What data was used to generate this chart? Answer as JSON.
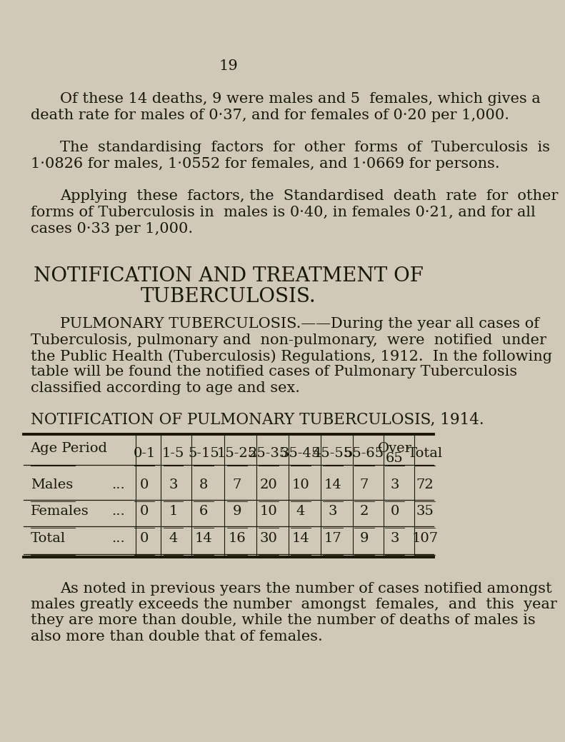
{
  "bg_color": "#cfc9b8",
  "page_number": "19",
  "paragraph1_line1": "Of these 14 deaths, 9 were males and 5  females, which gives a",
  "paragraph1_line2": "death rate for males of 0·37, and for females of 0·20 per 1,000.",
  "paragraph2_line1": "The  standardising  factors  for  other  forms  of  Tuberculosis  is",
  "paragraph2_line2": "1·0826 for males, 1·0552 for females, and 1·0669 for persons.",
  "paragraph3_line1": "Applying  these  factors, the  Standardised  death  rate  for  other",
  "paragraph3_line2": "forms of Tuberculosis in  males is 0·40, in females 0·21, and for all",
  "paragraph3_line3": "cases 0·33 per 1,000.",
  "section_title1": "NOTIFICATION AND TREATMENT OF",
  "section_title2": "TUBERCULOSIS.",
  "pulmonary_para_line1": "PULMONARY TUBERCULOSIS.——During the year all cases of",
  "pulmonary_para_line2": "Tuberculosis, pulmonary and  non-pulmonary,  were  notified  under",
  "pulmonary_para_line3": "the Public Health (Tuberculosis) Regulations, 1912.  In the following",
  "pulmonary_para_line4": "table will be found the notified cases of Pulmonary Tuberculosis",
  "pulmonary_para_line5": "classified according to age and sex.",
  "table_title": "NOTIFICATION OF PULMONARY TUBERCULOSIS, 1914.",
  "col_headers": [
    "Age Period",
    "0-1",
    "1-5",
    "5-15",
    "15-25",
    "25-35",
    "35-45",
    "45-55",
    "55-65",
    "Over\n65",
    "Total"
  ],
  "rows": [
    [
      "Males",
      "...",
      "0",
      "3",
      "8",
      "7",
      "20",
      "10",
      "14",
      "7",
      "3",
      "72"
    ],
    [
      "Females",
      "...",
      "0",
      "1",
      "6",
      "9",
      "10",
      "4",
      "3",
      "2",
      "0",
      "35"
    ],
    [
      "Total",
      "...",
      "0",
      "4",
      "14",
      "16",
      "30",
      "14",
      "17",
      "9",
      "3",
      "107"
    ]
  ],
  "footer_line1": "As noted in previous years the number of cases notified amongst",
  "footer_line2": "males greatly exceeds the number  amongst  females,  and  this  year",
  "footer_line3": "they are more than double, while the number of deaths of males is",
  "footer_line4": "also more than double that of females.",
  "text_color": "#1a1708",
  "font_size_body": 15.0,
  "font_size_section": 20,
  "font_size_table_title": 15.5,
  "font_size_table": 14,
  "font_size_page_num": 15
}
